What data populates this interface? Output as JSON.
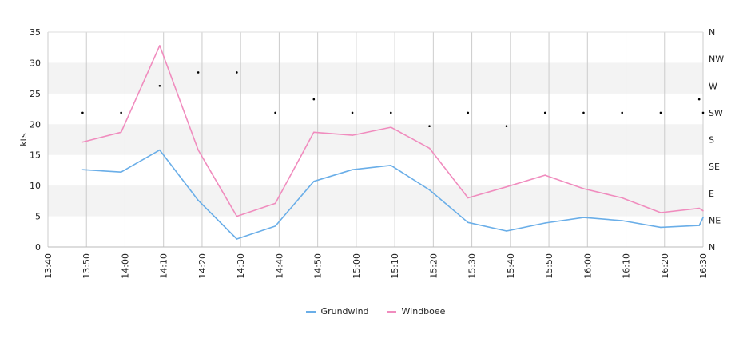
{
  "chart_data": {
    "type": "line",
    "x": [
      "13:40",
      "13:50",
      "14:00",
      "14:10",
      "14:20",
      "14:30",
      "14:40",
      "14:50",
      "15:00",
      "15:10",
      "15:20",
      "15:30",
      "15:40",
      "15:50",
      "16:00",
      "16:10",
      "16:20",
      "16:30"
    ],
    "ylabel": "kts",
    "ylim": [
      0,
      35
    ],
    "yticks": [
      "0",
      "5",
      "10",
      "15",
      "20",
      "25",
      "30",
      "35"
    ],
    "y2ticks": [
      "N",
      "NE",
      "E",
      "SE",
      "S",
      "SW",
      "W",
      "NW",
      "N"
    ],
    "grid": true,
    "legend_position": "bottom",
    "series": [
      {
        "name": "Grundwind",
        "color": "#6aaee8",
        "points": [
          {
            "x": "13:49",
            "y": 12.6
          },
          {
            "x": "13:59",
            "y": 12.2
          },
          {
            "x": "14:09",
            "y": 15.8
          },
          {
            "x": "14:19",
            "y": 7.6
          },
          {
            "x": "14:29",
            "y": 1.3
          },
          {
            "x": "14:39",
            "y": 3.4
          },
          {
            "x": "14:49",
            "y": 10.7
          },
          {
            "x": "14:59",
            "y": 12.6
          },
          {
            "x": "15:09",
            "y": 13.3
          },
          {
            "x": "15:19",
            "y": 9.3
          },
          {
            "x": "15:29",
            "y": 4.0
          },
          {
            "x": "15:39",
            "y": 2.6
          },
          {
            "x": "15:49",
            "y": 3.9
          },
          {
            "x": "15:59",
            "y": 4.8
          },
          {
            "x": "16:09",
            "y": 4.3
          },
          {
            "x": "16:19",
            "y": 3.2
          },
          {
            "x": "16:29",
            "y": 3.5
          },
          {
            "x": "16:30",
            "y": 4.8
          }
        ]
      },
      {
        "name": "Windboee",
        "color": "#f08cbe",
        "points": [
          {
            "x": "13:49",
            "y": 17.1
          },
          {
            "x": "13:59",
            "y": 18.7
          },
          {
            "x": "14:09",
            "y": 32.8
          },
          {
            "x": "14:19",
            "y": 15.8
          },
          {
            "x": "14:29",
            "y": 5.0
          },
          {
            "x": "14:39",
            "y": 7.1
          },
          {
            "x": "14:49",
            "y": 18.7
          },
          {
            "x": "14:59",
            "y": 18.2
          },
          {
            "x": "15:09",
            "y": 19.5
          },
          {
            "x": "15:19",
            "y": 16.1
          },
          {
            "x": "15:29",
            "y": 8.0
          },
          {
            "x": "15:39",
            "y": 9.8
          },
          {
            "x": "15:49",
            "y": 11.7
          },
          {
            "x": "15:59",
            "y": 9.5
          },
          {
            "x": "16:09",
            "y": 8.0
          },
          {
            "x": "16:19",
            "y": 5.6
          },
          {
            "x": "16:29",
            "y": 6.3
          },
          {
            "x": "16:30",
            "y": 5.9
          }
        ]
      }
    ],
    "direction_points": [
      {
        "x": "13:49",
        "dir": "SW"
      },
      {
        "x": "13:59",
        "dir": "SW"
      },
      {
        "x": "14:09",
        "dir": "W"
      },
      {
        "x": "14:19",
        "dir": "NW-W"
      },
      {
        "x": "14:29",
        "dir": "W-NW"
      },
      {
        "x": "14:39",
        "dir": "SW"
      },
      {
        "x": "14:49",
        "dir": "SW-W"
      },
      {
        "x": "14:59",
        "dir": "SW"
      },
      {
        "x": "15:09",
        "dir": "SW"
      },
      {
        "x": "15:19",
        "dir": "SW-S"
      },
      {
        "x": "15:29",
        "dir": "SW"
      },
      {
        "x": "15:39",
        "dir": "SW-S"
      },
      {
        "x": "15:49",
        "dir": "SW"
      },
      {
        "x": "15:59",
        "dir": "SW"
      },
      {
        "x": "16:09",
        "dir": "SW"
      },
      {
        "x": "16:19",
        "dir": "SW"
      },
      {
        "x": "16:29",
        "dir": "SW-W"
      },
      {
        "x": "16:30",
        "dir": "SW"
      }
    ]
  }
}
